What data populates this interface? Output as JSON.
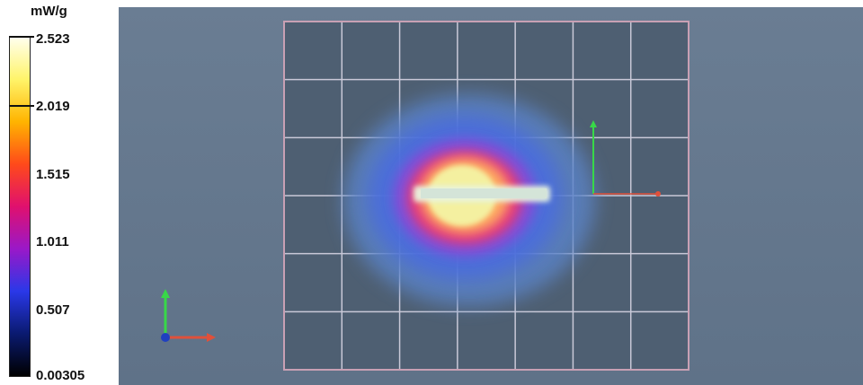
{
  "legend": {
    "unit": "mW/g",
    "ticks": [
      "2.523",
      "2.019",
      "1.515",
      "1.011",
      "0.507",
      "0.00305"
    ],
    "gradient_colors": [
      "#fffff0",
      "#fff46a",
      "#ffb400",
      "#ff4a1a",
      "#e0106e",
      "#9a18c8",
      "#2a38e8",
      "#0a1a70",
      "#000000"
    ]
  },
  "viewport": {
    "background": "#6a7d93",
    "grid": "on",
    "grid_color": "#c9c9d8",
    "grid_border_color": "#c8a0b4",
    "axis_colors": {
      "x": "#e0503a",
      "y": "#38d848",
      "z": "#2040c0"
    }
  }
}
